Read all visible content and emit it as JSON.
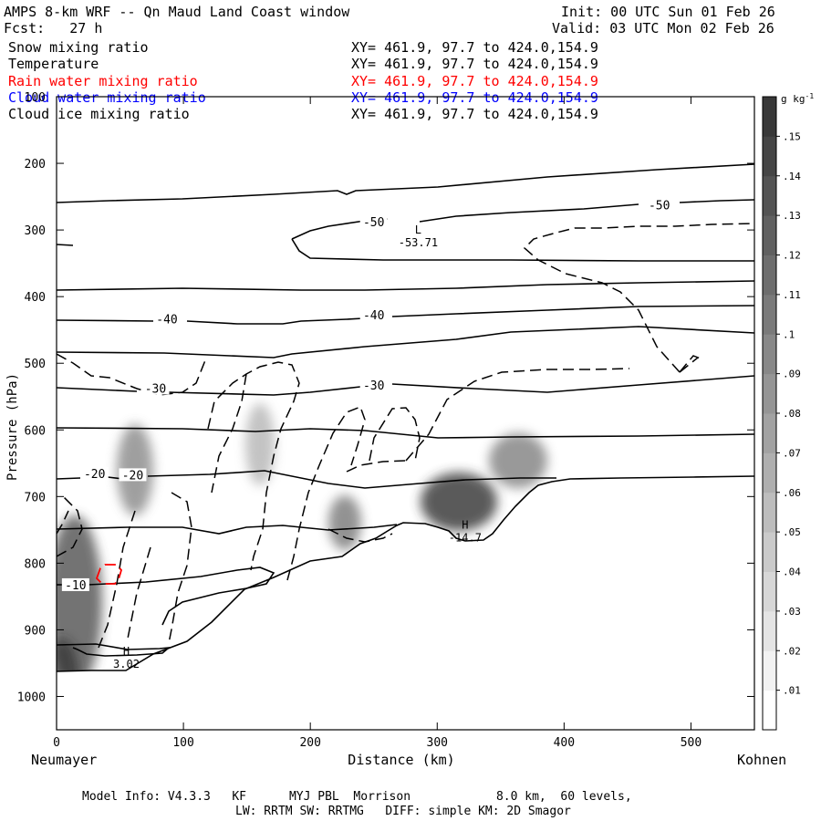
{
  "header": {
    "title": "AMPS 8-km WRF -- Qn Maud Land Coast window",
    "forecast": "Fcst:   27 h",
    "init": "Init: 00 UTC Sun 01 Feb 26",
    "valid": "Valid: 03 UTC Mon 02 Feb 26"
  },
  "legend": [
    {
      "label": "Snow mixing ratio",
      "xy": "XY= 461.9, 97.7 to 424.0,154.9",
      "color": "#000000"
    },
    {
      "label": "Temperature",
      "xy": "XY= 461.9, 97.7 to 424.0,154.9",
      "color": "#000000"
    },
    {
      "label": "Rain water mixing ratio",
      "xy": "XY= 461.9, 97.7 to 424.0,154.9",
      "color": "#ff0000"
    },
    {
      "label": "Cloud water mixing ratio",
      "xy": "XY= 461.9, 97.7 to 424.0,154.9",
      "color": "#0000ff"
    },
    {
      "label": "Cloud ice mixing ratio",
      "xy": "XY= 461.9, 97.7 to 424.0,154.9",
      "color": "#000000"
    }
  ],
  "chart_data": {
    "type": "contour-cross-section",
    "xlabel": "Distance (km)",
    "ylabel": "Pressure (hPa)",
    "xlim": [
      0,
      550
    ],
    "ylim": [
      1050,
      100
    ],
    "x_ticks": [
      0,
      100,
      200,
      300,
      400,
      500
    ],
    "y_ticks": [
      100,
      200,
      300,
      400,
      500,
      600,
      700,
      800,
      900,
      1000
    ],
    "left_endpoint": "Neumayer",
    "right_endpoint": "Kohnen",
    "colorbar": {
      "unit": "g kg",
      "unit_exp": "-1",
      "levels": [
        ".01",
        ".02",
        ".03",
        ".04",
        ".05",
        ".06",
        ".07",
        ".08",
        ".09",
        ".1",
        ".11",
        ".12",
        ".13",
        ".14",
        ".15"
      ]
    },
    "temperature_labels": [
      {
        "text": "-50",
        "x": 250,
        "p": 290
      },
      {
        "text": "-50",
        "x": 475,
        "p": 265
      },
      {
        "text": "-40",
        "x": 87,
        "p": 436
      },
      {
        "text": "-40",
        "x": 250,
        "p": 430
      },
      {
        "text": "-30",
        "x": 78,
        "p": 540
      },
      {
        "text": "-30",
        "x": 250,
        "p": 535
      },
      {
        "text": "-20",
        "x": 30,
        "p": 668
      },
      {
        "text": "-20",
        "x": 60,
        "p": 670
      },
      {
        "text": "-10",
        "x": 15,
        "p": 835
      }
    ],
    "extrema": [
      {
        "kind": "L",
        "x": 285,
        "p": 305,
        "value": "-53.71"
      },
      {
        "kind": "H",
        "x": 322,
        "p": 748,
        "value": "-14.7"
      },
      {
        "kind": "H",
        "x": 55,
        "p": 938,
        "value": "3.02"
      }
    ],
    "snow_maxima": [
      {
        "x": 15,
        "p": 880,
        "value": 0.14
      },
      {
        "x": 60,
        "p": 640,
        "value": 0.07
      },
      {
        "x": 160,
        "p": 600,
        "value": 0.05
      },
      {
        "x": 225,
        "p": 740,
        "value": 0.07
      },
      {
        "x": 315,
        "p": 715,
        "value": 0.13
      },
      {
        "x": 365,
        "p": 660,
        "value": 0.09
      }
    ]
  },
  "footer": {
    "model_info": "Model Info: V4.3.3   KF      MYJ PBL  Morrison            8.0 km,  60 levels,",
    "physics": "LW: RRTM SW: RRTMG   DIFF: simple KM: 2D Smagor"
  }
}
